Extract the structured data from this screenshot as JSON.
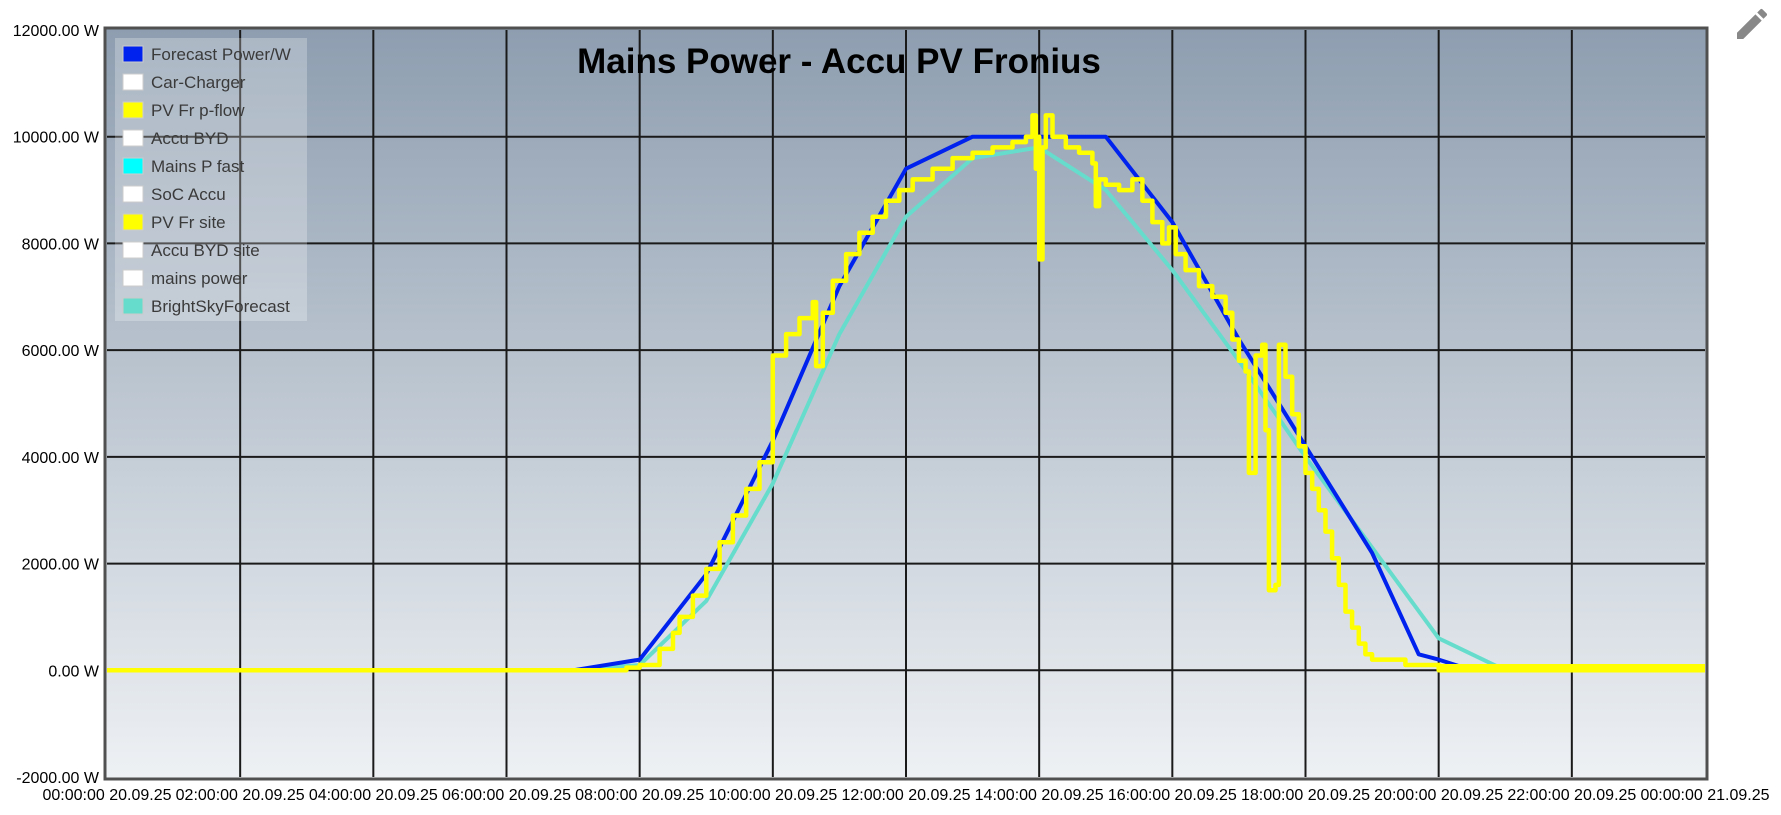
{
  "page": {
    "edit_icon": "pencil-icon"
  },
  "chart_data": {
    "type": "line",
    "title": "Mains Power - Accu PV Fronius",
    "ylim": [
      -2000,
      12000
    ],
    "xlim_hours": [
      0,
      24
    ],
    "y_ticks": [
      "12000.00 W",
      "10000.00 W",
      "8000.00 W",
      "6000.00 W",
      "4000.00 W",
      "2000.00 W",
      "0.00 W",
      "-2000.00 W"
    ],
    "x_ticks": [
      "00:00:00 20.09.25",
      "02:00:00 20.09.25",
      "04:00:00 20.09.25",
      "06:00:00 20.09.25",
      "08:00:00 20.09.25",
      "10:00:00 20.09.25",
      "12:00:00 20.09.25",
      "14:00:00 20.09.25",
      "16:00:00 20.09.25",
      "18:00:00 20.09.25",
      "20:00:00 20.09.25",
      "22:00:00 20.09.25",
      "00:00:00 21.09.25"
    ],
    "grid": true,
    "legend_position": "top-left",
    "legend": [
      {
        "name": "Forecast Power/W",
        "color": "#0022ee"
      },
      {
        "name": "Car-Charger",
        "color": "#ffffff"
      },
      {
        "name": "PV Fr p-flow",
        "color": "#ffff00"
      },
      {
        "name": "Accu BYD",
        "color": "#ffffff"
      },
      {
        "name": "Mains P fast",
        "color": "#00ffff"
      },
      {
        "name": "SoC Accu",
        "color": "#ffffff"
      },
      {
        "name": "PV Fr site",
        "color": "#ffff00"
      },
      {
        "name": "Accu BYD site",
        "color": "#ffffff"
      },
      {
        "name": "mains power",
        "color": "#ffffff"
      },
      {
        "name": "BrightSkyForecast",
        "color": "#66ddcc"
      }
    ],
    "series": [
      {
        "name": "Forecast Power/W",
        "color": "#0022ee",
        "points": [
          [
            7,
            0
          ],
          [
            8,
            200
          ],
          [
            9,
            1800
          ],
          [
            10,
            4300
          ],
          [
            11,
            7200
          ],
          [
            12,
            9400
          ],
          [
            13,
            10000
          ],
          [
            14,
            10000
          ],
          [
            15,
            10000
          ],
          [
            16,
            8400
          ],
          [
            17,
            6200
          ],
          [
            18,
            4200
          ],
          [
            19,
            2200
          ],
          [
            19.7,
            300
          ],
          [
            20,
            200
          ],
          [
            20.5,
            0
          ]
        ]
      },
      {
        "name": "BrightSkyForecast",
        "color": "#66ddcc",
        "points": [
          [
            5,
            0
          ],
          [
            7,
            0
          ],
          [
            8,
            100
          ],
          [
            9,
            1300
          ],
          [
            10,
            3500
          ],
          [
            11,
            6300
          ],
          [
            12,
            8500
          ],
          [
            13,
            9600
          ],
          [
            14,
            9800
          ],
          [
            15,
            9000
          ],
          [
            16,
            7500
          ],
          [
            17,
            5800
          ],
          [
            18,
            4000
          ],
          [
            19,
            2300
          ],
          [
            20,
            600
          ],
          [
            21,
            0
          ],
          [
            24,
            0
          ]
        ]
      },
      {
        "name": "PV Fr p-flow",
        "color": "#ffff00",
        "step": true,
        "points": [
          [
            0,
            0
          ],
          [
            7.5,
            0
          ],
          [
            7.8,
            50
          ],
          [
            8,
            100
          ],
          [
            8.3,
            400
          ],
          [
            8.5,
            700
          ],
          [
            8.6,
            1000
          ],
          [
            8.8,
            1400
          ],
          [
            9,
            1900
          ],
          [
            9.2,
            2400
          ],
          [
            9.4,
            2900
          ],
          [
            9.6,
            3400
          ],
          [
            9.8,
            3900
          ],
          [
            10,
            4500
          ],
          [
            10,
            5900
          ],
          [
            10.2,
            6300
          ],
          [
            10.4,
            6600
          ],
          [
            10.6,
            6900
          ],
          [
            10.65,
            5700
          ],
          [
            10.75,
            6700
          ],
          [
            10.9,
            7300
          ],
          [
            11.1,
            7800
          ],
          [
            11.3,
            8200
          ],
          [
            11.5,
            8500
          ],
          [
            11.7,
            8800
          ],
          [
            11.9,
            9000
          ],
          [
            12.1,
            9200
          ],
          [
            12.4,
            9400
          ],
          [
            12.7,
            9600
          ],
          [
            13,
            9700
          ],
          [
            13.3,
            9800
          ],
          [
            13.6,
            9900
          ],
          [
            13.8,
            10000
          ],
          [
            13.9,
            10400
          ],
          [
            13.95,
            9400
          ],
          [
            14,
            10000
          ],
          [
            14,
            7700
          ],
          [
            14.05,
            9800
          ],
          [
            14.1,
            10400
          ],
          [
            14.2,
            10000
          ],
          [
            14.4,
            9800
          ],
          [
            14.6,
            9700
          ],
          [
            14.8,
            9500
          ],
          [
            14.85,
            8700
          ],
          [
            14.9,
            9200
          ],
          [
            15,
            9100
          ],
          [
            15.2,
            9000
          ],
          [
            15.4,
            9200
          ],
          [
            15.55,
            8800
          ],
          [
            15.7,
            8400
          ],
          [
            15.85,
            8000
          ],
          [
            15.95,
            8300
          ],
          [
            16.05,
            7800
          ],
          [
            16.2,
            7500
          ],
          [
            16.4,
            7200
          ],
          [
            16.6,
            7000
          ],
          [
            16.8,
            6700
          ],
          [
            16.9,
            6200
          ],
          [
            17,
            5800
          ],
          [
            17.1,
            5600
          ],
          [
            17.15,
            3700
          ],
          [
            17.25,
            5900
          ],
          [
            17.35,
            6100
          ],
          [
            17.4,
            4500
          ],
          [
            17.45,
            1500
          ],
          [
            17.55,
            1600
          ],
          [
            17.6,
            2100
          ],
          [
            17.6,
            6100
          ],
          [
            17.7,
            5500
          ],
          [
            17.8,
            4800
          ],
          [
            17.9,
            4200
          ],
          [
            18,
            3700
          ],
          [
            18.1,
            3400
          ],
          [
            18.2,
            3000
          ],
          [
            18.3,
            2600
          ],
          [
            18.4,
            2100
          ],
          [
            18.5,
            1600
          ],
          [
            18.6,
            1100
          ],
          [
            18.7,
            800
          ],
          [
            18.8,
            500
          ],
          [
            18.9,
            300
          ],
          [
            19,
            200
          ],
          [
            19.5,
            100
          ],
          [
            20,
            0
          ],
          [
            24,
            0
          ]
        ]
      },
      {
        "name": "PV Fr site",
        "color": "#ffff00",
        "points": [
          [
            20,
            80
          ],
          [
            24,
            80
          ]
        ]
      }
    ]
  }
}
